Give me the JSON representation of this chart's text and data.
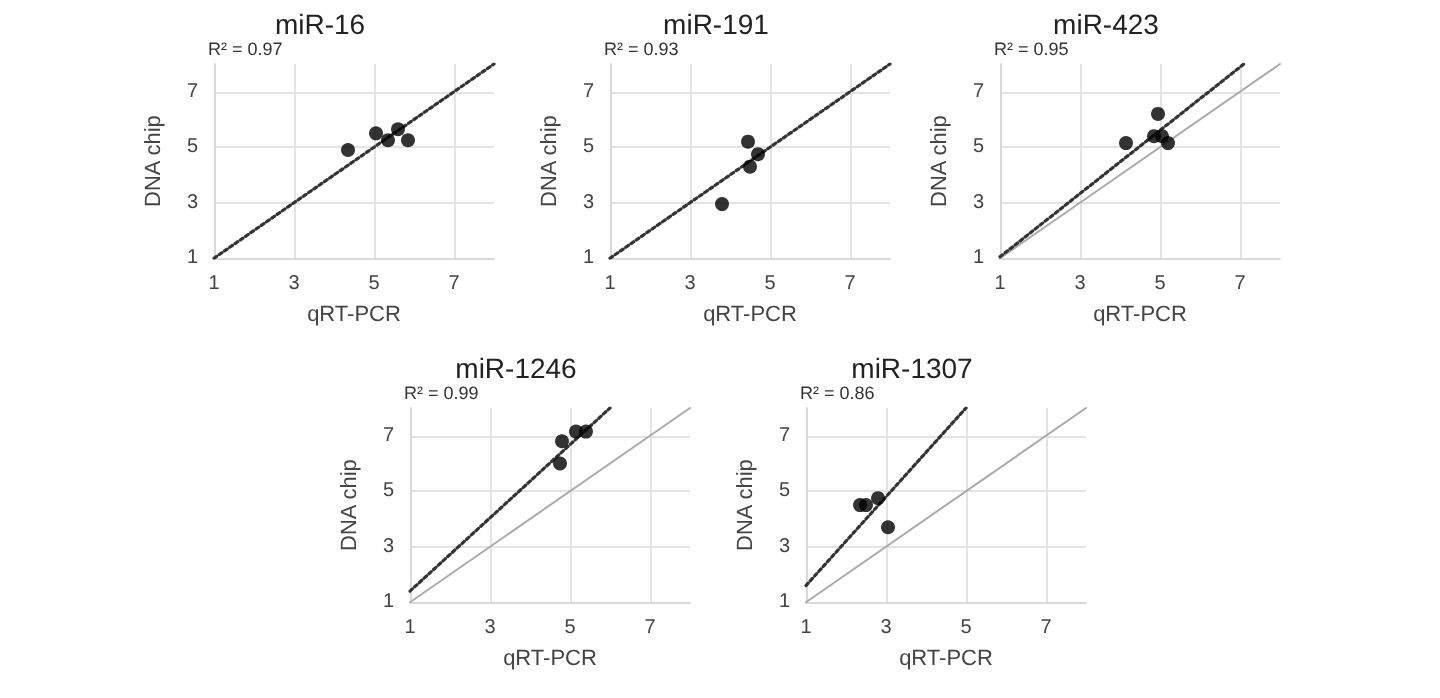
{
  "chart_data": [
    {
      "type": "scatter",
      "title": "miR-16",
      "xlabel": "qRT-PCR",
      "ylabel": "DNA chip",
      "annotations": [
        "R² = 0.97"
      ],
      "xlim": [
        1,
        8
      ],
      "ylim": [
        1,
        8
      ],
      "xticks": [
        1,
        3,
        5,
        7
      ],
      "yticks": [
        1,
        3,
        5,
        7
      ],
      "grid": true,
      "series": [
        {
          "color": "#000000",
          "marker": "circle",
          "x": [
            4.35,
            5.05,
            5.35,
            5.6,
            5.85
          ],
          "values": [
            4.9,
            5.5,
            5.25,
            5.65,
            5.25
          ]
        },
        {
          "type": "line",
          "color": "#333333",
          "marker": "none",
          "line_style": "dotted",
          "x": [
            1,
            8
          ],
          "values": [
            1,
            8
          ]
        }
      ]
    },
    {
      "type": "scatter",
      "title": "miR-191",
      "xlabel": "qRT-PCR",
      "ylabel": "DNA chip",
      "annotations": [
        "R² = 0.93"
      ],
      "xlim": [
        1,
        8
      ],
      "ylim": [
        1,
        8
      ],
      "xticks": [
        1,
        3,
        5,
        7
      ],
      "yticks": [
        1,
        3,
        5,
        7
      ],
      "grid": true,
      "series": [
        {
          "color": "#000000",
          "marker": "circle",
          "x": [
            3.8,
            4.45,
            4.5,
            4.7
          ],
          "values": [
            2.95,
            5.2,
            4.3,
            4.75
          ]
        },
        {
          "type": "line",
          "color": "#333333",
          "marker": "none",
          "line_style": "dotted",
          "x": [
            1,
            8
          ],
          "values": [
            1,
            8
          ]
        }
      ]
    },
    {
      "type": "scatter",
      "title": "miR-423",
      "xlabel": "qRT-PCR",
      "ylabel": "DNA chip",
      "annotations": [
        "R² = 0.95"
      ],
      "xlim": [
        1,
        8
      ],
      "ylim": [
        1,
        8
      ],
      "xticks": [
        1,
        3,
        5,
        7
      ],
      "yticks": [
        1,
        3,
        5,
        7
      ],
      "grid": true,
      "series": [
        {
          "type": "line",
          "color": "#aaaaaa",
          "marker": "none",
          "line_style": "solid",
          "x": [
            1,
            8
          ],
          "values": [
            1,
            8
          ]
        },
        {
          "type": "line",
          "color": "#333333",
          "marker": "none",
          "line_style": "dotted",
          "x": [
            1,
            7.1
          ],
          "values": [
            1.05,
            8
          ]
        },
        {
          "color": "#000000",
          "marker": "circle",
          "x": [
            4.15,
            4.85,
            4.95,
            5.05,
            5.2
          ],
          "values": [
            5.15,
            5.4,
            6.2,
            5.4,
            5.15
          ]
        }
      ]
    },
    {
      "type": "scatter",
      "title": "miR-1246",
      "xlabel": "qRT-PCR",
      "ylabel": "DNA chip",
      "annotations": [
        "R² = 0.99"
      ],
      "xlim": [
        1,
        8
      ],
      "ylim": [
        1,
        8
      ],
      "xticks": [
        1,
        3,
        5,
        7
      ],
      "yticks": [
        1,
        3,
        5,
        7
      ],
      "grid": true,
      "series": [
        {
          "type": "line",
          "color": "#aaaaaa",
          "marker": "none",
          "line_style": "solid",
          "x": [
            1,
            8
          ],
          "values": [
            1,
            8
          ]
        },
        {
          "type": "line",
          "color": "#333333",
          "marker": "none",
          "line_style": "dotted",
          "x": [
            1,
            6
          ],
          "values": [
            1.4,
            8
          ]
        },
        {
          "color": "#000000",
          "marker": "circle",
          "x": [
            4.75,
            4.8,
            5.15,
            5.4
          ],
          "values": [
            6.0,
            6.8,
            7.15,
            7.15
          ]
        }
      ]
    },
    {
      "type": "scatter",
      "title": "miR-1307",
      "xlabel": "qRT-PCR",
      "ylabel": "DNA chip",
      "annotations": [
        "R² = 0.86"
      ],
      "xlim": [
        1,
        8
      ],
      "ylim": [
        1,
        8
      ],
      "xticks": [
        1,
        3,
        5,
        7
      ],
      "yticks": [
        1,
        3,
        5,
        7
      ],
      "grid": true,
      "series": [
        {
          "type": "line",
          "color": "#aaaaaa",
          "marker": "none",
          "line_style": "solid",
          "x": [
            1,
            8
          ],
          "values": [
            1,
            8
          ]
        },
        {
          "type": "line",
          "color": "#333333",
          "marker": "none",
          "line_style": "dotted",
          "x": [
            1,
            5
          ],
          "values": [
            1.6,
            8
          ]
        },
        {
          "color": "#000000",
          "marker": "circle",
          "x": [
            2.35,
            2.5,
            2.8,
            3.05
          ],
          "values": [
            4.5,
            4.5,
            4.75,
            3.7
          ]
        }
      ]
    }
  ]
}
